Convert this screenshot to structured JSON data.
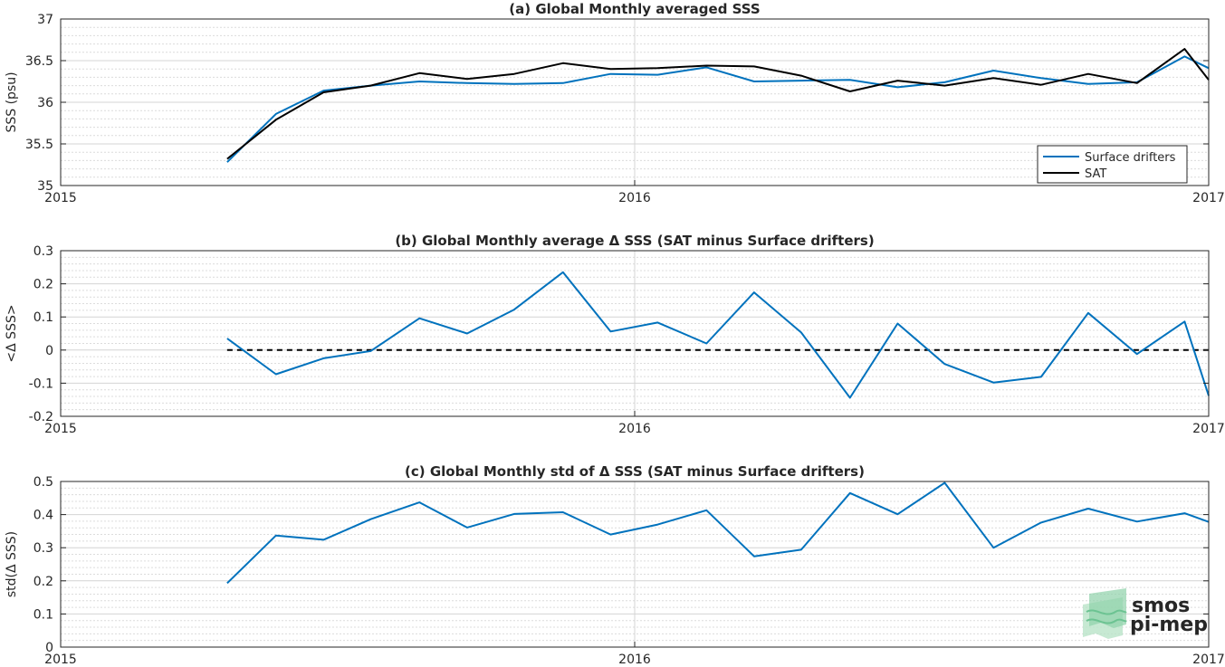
{
  "chart_data": [
    {
      "type": "line",
      "title": "(a) Global Monthly averaged SSS",
      "xlabel": "",
      "ylabel": "SSS (psu)",
      "xlim": [
        2015,
        2017
      ],
      "ylim": [
        35,
        37
      ],
      "x_ticks": [
        "2015",
        "2016",
        "2017"
      ],
      "y_ticks": [
        "35",
        "35.5",
        "36",
        "36.5",
        "37"
      ],
      "grid": true,
      "legend_position": "bottom-right",
      "x": [
        2015.29,
        2015.375,
        2015.458,
        2015.54,
        2015.625,
        2015.708,
        2015.79,
        2015.875,
        2015.958,
        2016.04,
        2016.125,
        2016.208,
        2016.29,
        2016.375,
        2016.458,
        2016.54,
        2016.625,
        2016.708,
        2016.79,
        2016.875,
        2016.958,
        2017.0
      ],
      "series": [
        {
          "name": "Surface drifters",
          "color": "#0072bd",
          "values": [
            35.28,
            35.86,
            36.14,
            36.2,
            36.25,
            36.23,
            36.22,
            36.23,
            36.34,
            36.33,
            36.42,
            36.25,
            36.26,
            36.27,
            36.18,
            36.24,
            36.38,
            36.29,
            36.22,
            36.24,
            36.55,
            36.41
          ]
        },
        {
          "name": "SAT",
          "color": "#000000",
          "values": [
            35.32,
            35.79,
            36.12,
            36.2,
            36.35,
            36.28,
            36.34,
            36.47,
            36.4,
            36.41,
            36.44,
            36.43,
            36.32,
            36.13,
            36.26,
            36.2,
            36.29,
            36.21,
            36.34,
            36.23,
            36.64,
            36.27
          ]
        }
      ]
    },
    {
      "type": "line",
      "title": "(b) Global Monthly average Δ SSS (SAT minus Surface drifters)",
      "xlabel": "",
      "ylabel": "<Δ SSS>",
      "xlim": [
        2015,
        2017
      ],
      "ylim": [
        -0.2,
        0.3
      ],
      "x_ticks": [
        "2015",
        "2016",
        "2017"
      ],
      "y_ticks": [
        "-0.2",
        "-0.1",
        "0",
        "0.1",
        "0.2",
        "0.3"
      ],
      "grid": true,
      "reference_line": {
        "y": 0,
        "style": "dashed",
        "color": "#000000"
      },
      "x": [
        2015.29,
        2015.375,
        2015.458,
        2015.54,
        2015.625,
        2015.708,
        2015.79,
        2015.875,
        2015.958,
        2016.04,
        2016.125,
        2016.208,
        2016.29,
        2016.375,
        2016.458,
        2016.54,
        2016.625,
        2016.708,
        2016.79,
        2016.875,
        2016.958,
        2017.0
      ],
      "series": [
        {
          "color": "#0072bd",
          "values": [
            0.035,
            -0.073,
            -0.025,
            -0.003,
            0.096,
            0.05,
            0.122,
            0.235,
            0.056,
            0.083,
            0.02,
            0.174,
            0.053,
            -0.144,
            0.08,
            -0.042,
            -0.098,
            -0.081,
            0.112,
            -0.012,
            0.086,
            -0.138
          ]
        }
      ]
    },
    {
      "type": "line",
      "title": "(c) Global Monthly std of Δ SSS (SAT minus Surface drifters)",
      "xlabel": "",
      "ylabel": "std(Δ SSS)",
      "xlim": [
        2015,
        2017
      ],
      "ylim": [
        0,
        0.5
      ],
      "x_ticks": [
        "2015",
        "2016",
        "2017"
      ],
      "y_ticks": [
        "0",
        "0.1",
        "0.2",
        "0.3",
        "0.4",
        "0.5"
      ],
      "grid": true,
      "x": [
        2015.29,
        2015.375,
        2015.458,
        2015.54,
        2015.625,
        2015.708,
        2015.79,
        2015.875,
        2015.958,
        2016.04,
        2016.125,
        2016.208,
        2016.29,
        2016.375,
        2016.458,
        2016.54,
        2016.625,
        2016.708,
        2016.79,
        2016.875,
        2016.958,
        2017.0
      ],
      "series": [
        {
          "color": "#0072bd",
          "values": [
            0.193,
            0.337,
            0.324,
            0.386,
            0.437,
            0.361,
            0.402,
            0.407,
            0.34,
            0.37,
            0.413,
            0.274,
            0.294,
            0.465,
            0.401,
            0.496,
            0.3,
            0.376,
            0.418,
            0.379,
            0.404,
            0.378
          ]
        }
      ]
    }
  ],
  "logo": {
    "line1": "smos",
    "line2": "pi-mep",
    "color": "#8fd1a9"
  }
}
